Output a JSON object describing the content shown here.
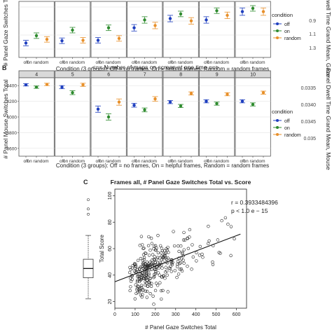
{
  "colors": {
    "off": "#1f3fbf",
    "on": "#2e8b2e",
    "random": "#e8902a",
    "strip": "#d9d9d9",
    "panel_border": "#555555",
    "grid": "#dddddd"
  },
  "figure": {
    "panel_a": {
      "ylabel_left": "# Panel Gaze Switches Total",
      "ylabel_right": "Panel Dwell Time Grand Mean, Gaze",
      "right_ticks": [
        "0.9",
        "1.1",
        "1.3"
      ],
      "xlabel": "Condition (3 groups): Off = no frames, On = helpful frames, Random = random frames",
      "cat_labels": [
        "off",
        "on",
        "random"
      ],
      "legend_title": "condition",
      "legend_items": [
        "off",
        "on",
        "random"
      ]
    },
    "panel_b": {
      "letter": "B",
      "top_title": "<== Number of maps on screen at one time ==>",
      "strip_labels": [
        "4",
        "5",
        "6",
        "7",
        "8",
        "9",
        "10"
      ],
      "ylabel_left": "# Panel Mouse Switches Total",
      "ylabel_right": "Panel Dwell Time Grand Mean, Mouse",
      "y_ticks": [
        "4400",
        "4200",
        "4000",
        "3800",
        "3600"
      ],
      "right_ticks": [
        "0.0335",
        "0.0340",
        "0.0345",
        "0.035"
      ],
      "xlabel": "Condition (3 groups): Off = no frames, On = helpful frames, Random = random frames",
      "cat_labels": [
        "off",
        "on",
        "random"
      ],
      "legend_title": "condition",
      "legend_items": [
        "off",
        "on",
        "random"
      ]
    },
    "panel_c": {
      "letter": "C",
      "title": "Frames all, # Panel Gaze Switches Total vs. Score",
      "xlabel": "# Panel Gaze Switches Total",
      "ylabel": "Total Score",
      "r_label": "r = 0.3933484396",
      "p_label": "p < 1.0 e − 15",
      "x_ticks": [
        "0",
        "100",
        "200",
        "300",
        "400",
        "500",
        "600"
      ],
      "y_ticks": [
        "100",
        "80",
        "60",
        "40",
        "20"
      ]
    }
  },
  "chart_data": [
    {
      "type": "scatter",
      "title": "",
      "categories": [
        "off",
        "on",
        "random"
      ],
      "xlabel": "Condition (3 groups): Off = no frames, On = helpful frames, Random = random frames",
      "ylabel": "# Panel Gaze Switches Total",
      "panels": [
        {
          "values": [
            0.22,
            0.38,
            0.3
          ],
          "err": [
            0.06,
            0.06,
            0.06
          ]
        },
        {
          "values": [
            0.27,
            0.5,
            0.28
          ],
          "err": [
            0.06,
            0.06,
            0.06
          ]
        },
        {
          "values": [
            0.28,
            0.55,
            0.32
          ],
          "err": [
            0.06,
            0.06,
            0.06
          ]
        },
        {
          "values": [
            0.55,
            0.72,
            0.6
          ],
          "err": [
            0.07,
            0.07,
            0.07
          ]
        },
        {
          "values": [
            0.75,
            0.85,
            0.7
          ],
          "err": [
            0.07,
            0.06,
            0.07
          ]
        },
        {
          "values": [
            0.72,
            0.92,
            0.82
          ],
          "err": [
            0.07,
            0.06,
            0.07
          ]
        },
        {
          "values": [
            0.9,
            0.97,
            0.9
          ],
          "err": [
            0.08,
            0.06,
            0.08
          ]
        }
      ],
      "series": [
        {
          "name": "off"
        },
        {
          "name": "on"
        },
        {
          "name": "random"
        }
      ]
    },
    {
      "type": "scatter",
      "title": "<== Number of maps on screen at one time ==>",
      "categories": [
        "off",
        "on",
        "random"
      ],
      "facets": [
        "4",
        "5",
        "6",
        "7",
        "8",
        "9",
        "10"
      ],
      "xlabel": "Condition (3 groups): Off = no frames, On = helpful frames, Random = random frames",
      "ylabel": "# Panel Mouse Switches Total",
      "ylim": [
        3500,
        4500
      ],
      "panels": [
        {
          "values": [
            4410,
            4380,
            4415
          ],
          "err": [
            15,
            15,
            15
          ]
        },
        {
          "values": [
            4380,
            4310,
            4410
          ],
          "err": [
            20,
            25,
            20
          ]
        },
        {
          "values": [
            4100,
            4000,
            4190
          ],
          "err": [
            40,
            40,
            40
          ]
        },
        {
          "values": [
            4150,
            4090,
            4230
          ],
          "err": [
            25,
            25,
            30
          ]
        },
        {
          "values": [
            4190,
            4140,
            4300
          ],
          "err": [
            20,
            20,
            20
          ]
        },
        {
          "values": [
            4200,
            4170,
            4290
          ],
          "err": [
            20,
            20,
            20
          ]
        },
        {
          "values": [
            4200,
            4160,
            4310
          ],
          "err": [
            20,
            20,
            20
          ]
        }
      ],
      "series": [
        {
          "name": "off"
        },
        {
          "name": "on"
        },
        {
          "name": "random"
        }
      ]
    },
    {
      "type": "scatter",
      "title": "Frames all, # Panel Gaze Switches Total vs. Score",
      "xlabel": "# Panel Gaze Switches Total",
      "ylabel": "Total Score",
      "xlim": [
        0,
        650
      ],
      "ylim": [
        15,
        105
      ],
      "fit_line": {
        "x": [
          0,
          620
        ],
        "y": [
          35,
          71
        ]
      },
      "boxplot": {
        "min": 22,
        "q1": 38,
        "median": 45,
        "q3": 52,
        "max": 70,
        "outliers": [
          86,
          90,
          97
        ]
      },
      "seed": 7,
      "n_points": 300
    }
  ]
}
